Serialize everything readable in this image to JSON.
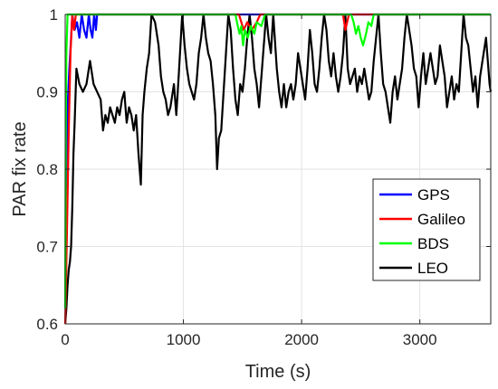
{
  "chart_data": {
    "type": "line",
    "xlabel": "Time (s)",
    "ylabel": "PAR fix rate",
    "xlim": [
      0,
      3600
    ],
    "ylim": [
      0.6,
      1.0
    ],
    "xticks": [
      0,
      1000,
      2000,
      3000
    ],
    "yticks": [
      0.6,
      0.7,
      0.8,
      0.9,
      1.0
    ],
    "xtick_labels": [
      "0",
      "1000",
      "2000",
      "3000"
    ],
    "ytick_labels": [
      "0.6",
      "0.7",
      "0.8",
      "0.9",
      "1"
    ],
    "grid": true,
    "legend_position": "right",
    "series": [
      {
        "name": "GPS",
        "color": "#0000ff",
        "points": [
          [
            0,
            0.62
          ],
          [
            10,
            0.8
          ],
          [
            20,
            0.88
          ],
          [
            35,
            0.93
          ],
          [
            50,
            0.97
          ],
          [
            60,
            1.0
          ],
          [
            80,
            0.98
          ],
          [
            100,
            0.99
          ],
          [
            120,
            0.97
          ],
          [
            140,
            1.0
          ],
          [
            160,
            0.98
          ],
          [
            180,
            0.97
          ],
          [
            200,
            1.0
          ],
          [
            215,
            0.98
          ],
          [
            230,
            0.97
          ],
          [
            245,
            1.0
          ],
          [
            260,
            0.98
          ],
          [
            270,
            1.0
          ],
          [
            3600,
            1.0
          ]
        ]
      },
      {
        "name": "Galileo",
        "color": "#ff0000",
        "points": [
          [
            0,
            0.6
          ],
          [
            15,
            0.72
          ],
          [
            30,
            0.85
          ],
          [
            45,
            0.95
          ],
          [
            60,
            1.0
          ],
          [
            75,
            0.98
          ],
          [
            90,
            1.0
          ],
          [
            1470,
            1.0
          ],
          [
            1490,
            0.99
          ],
          [
            1510,
            0.98
          ],
          [
            1540,
            0.99
          ],
          [
            1580,
            0.98
          ],
          [
            1620,
            0.99
          ],
          [
            1650,
            1.0
          ],
          [
            2350,
            1.0
          ],
          [
            2370,
            0.98
          ],
          [
            2400,
            1.0
          ],
          [
            3600,
            1.0
          ]
        ]
      },
      {
        "name": "BDS",
        "color": "#00ff00",
        "points": [
          [
            0,
            0.62
          ],
          [
            5,
            0.85
          ],
          [
            10,
            0.95
          ],
          [
            20,
            1.0
          ],
          [
            1440,
            1.0
          ],
          [
            1460,
            0.985
          ],
          [
            1475,
            0.975
          ],
          [
            1490,
            0.985
          ],
          [
            1505,
            0.96
          ],
          [
            1520,
            0.98
          ],
          [
            1545,
            0.97
          ],
          [
            1570,
            0.985
          ],
          [
            1600,
            0.975
          ],
          [
            1620,
            0.99
          ],
          [
            1660,
            0.985
          ],
          [
            1690,
            1.0
          ],
          [
            2420,
            1.0
          ],
          [
            2440,
            0.99
          ],
          [
            2460,
            0.975
          ],
          [
            2480,
            0.985
          ],
          [
            2500,
            0.97
          ],
          [
            2520,
            0.96
          ],
          [
            2545,
            0.975
          ],
          [
            2565,
            0.99
          ],
          [
            2590,
            0.985
          ],
          [
            2610,
            1.0
          ],
          [
            3600,
            1.0
          ]
        ]
      },
      {
        "name": "LEO",
        "color": "#000000",
        "points": [
          [
            0,
            0.6
          ],
          [
            10,
            0.62
          ],
          [
            20,
            0.65
          ],
          [
            30,
            0.67
          ],
          [
            40,
            0.68
          ],
          [
            50,
            0.7
          ],
          [
            60,
            0.75
          ],
          [
            70,
            0.82
          ],
          [
            80,
            0.86
          ],
          [
            95,
            0.93
          ],
          [
            120,
            0.91
          ],
          [
            150,
            0.9
          ],
          [
            180,
            0.91
          ],
          [
            210,
            0.94
          ],
          [
            240,
            0.91
          ],
          [
            270,
            0.9
          ],
          [
            300,
            0.89
          ],
          [
            320,
            0.85
          ],
          [
            340,
            0.87
          ],
          [
            360,
            0.86
          ],
          [
            380,
            0.88
          ],
          [
            400,
            0.87
          ],
          [
            420,
            0.86
          ],
          [
            440,
            0.88
          ],
          [
            460,
            0.87
          ],
          [
            480,
            0.89
          ],
          [
            500,
            0.9
          ],
          [
            520,
            0.86
          ],
          [
            540,
            0.88
          ],
          [
            560,
            0.87
          ],
          [
            580,
            0.85
          ],
          [
            600,
            0.87
          ],
          [
            620,
            0.82
          ],
          [
            640,
            0.78
          ],
          [
            655,
            0.87
          ],
          [
            670,
            0.9
          ],
          [
            690,
            0.93
          ],
          [
            710,
            0.95
          ],
          [
            730,
            1.0
          ],
          [
            760,
            0.99
          ],
          [
            790,
            0.96
          ],
          [
            810,
            0.92
          ],
          [
            830,
            0.9
          ],
          [
            850,
            0.89
          ],
          [
            870,
            0.87
          ],
          [
            890,
            0.88
          ],
          [
            900,
            0.89
          ],
          [
            920,
            0.91
          ],
          [
            940,
            0.87
          ],
          [
            960,
            0.92
          ],
          [
            990,
            1.0
          ],
          [
            1010,
            0.96
          ],
          [
            1030,
            0.93
          ],
          [
            1050,
            0.91
          ],
          [
            1070,
            0.9
          ],
          [
            1090,
            0.89
          ],
          [
            1110,
            0.91
          ],
          [
            1130,
            0.95
          ],
          [
            1150,
            0.97
          ],
          [
            1170,
            1.0
          ],
          [
            1190,
            0.97
          ],
          [
            1210,
            0.95
          ],
          [
            1230,
            0.94
          ],
          [
            1250,
            0.91
          ],
          [
            1270,
            0.87
          ],
          [
            1285,
            0.8
          ],
          [
            1300,
            0.84
          ],
          [
            1320,
            0.85
          ],
          [
            1340,
            0.9
          ],
          [
            1360,
            0.95
          ],
          [
            1380,
            1.0
          ],
          [
            1400,
            0.98
          ],
          [
            1420,
            0.93
          ],
          [
            1440,
            0.89
          ],
          [
            1460,
            0.87
          ],
          [
            1480,
            0.91
          ],
          [
            1500,
            0.9
          ],
          [
            1520,
            0.93
          ],
          [
            1540,
            0.97
          ],
          [
            1560,
            1.0
          ],
          [
            1580,
            0.97
          ],
          [
            1600,
            0.93
          ],
          [
            1620,
            0.91
          ],
          [
            1640,
            0.88
          ],
          [
            1660,
            0.92
          ],
          [
            1680,
            0.96
          ],
          [
            1700,
            1.0
          ],
          [
            1720,
            0.97
          ],
          [
            1740,
            0.95
          ],
          [
            1760,
            1.0
          ],
          [
            1790,
            0.93
          ],
          [
            1810,
            0.9
          ],
          [
            1830,
            0.88
          ],
          [
            1850,
            0.91
          ],
          [
            1870,
            0.88
          ],
          [
            1890,
            0.9
          ],
          [
            1910,
            0.91
          ],
          [
            1930,
            0.89
          ],
          [
            1950,
            0.91
          ],
          [
            1970,
            0.95
          ],
          [
            1990,
            0.93
          ],
          [
            2010,
            0.91
          ],
          [
            2030,
            0.89
          ],
          [
            2050,
            0.93
          ],
          [
            2070,
            0.98
          ],
          [
            2090,
            0.95
          ],
          [
            2110,
            0.91
          ],
          [
            2130,
            0.9
          ],
          [
            2150,
            0.93
          ],
          [
            2170,
            0.97
          ],
          [
            2190,
            1.0
          ],
          [
            2210,
            0.98
          ],
          [
            2230,
            0.94
          ],
          [
            2250,
            0.92
          ],
          [
            2270,
            0.95
          ],
          [
            2290,
            0.92
          ],
          [
            2310,
            0.9
          ],
          [
            2330,
            0.92
          ],
          [
            2350,
            0.95
          ],
          [
            2370,
            1.0
          ],
          [
            2390,
            0.93
          ],
          [
            2410,
            0.91
          ],
          [
            2430,
            0.92
          ],
          [
            2450,
            0.93
          ],
          [
            2470,
            0.9
          ],
          [
            2490,
            0.92
          ],
          [
            2510,
            0.91
          ],
          [
            2530,
            0.93
          ],
          [
            2550,
            0.91
          ],
          [
            2570,
            0.89
          ],
          [
            2590,
            0.9
          ],
          [
            2610,
            0.94
          ],
          [
            2630,
            0.97
          ],
          [
            2650,
            1.0
          ],
          [
            2670,
            0.95
          ],
          [
            2690,
            0.91
          ],
          [
            2710,
            0.9
          ],
          [
            2730,
            0.88
          ],
          [
            2750,
            0.86
          ],
          [
            2770,
            0.9
          ],
          [
            2790,
            0.92
          ],
          [
            2810,
            0.89
          ],
          [
            2830,
            0.91
          ],
          [
            2850,
            0.93
          ],
          [
            2870,
            0.97
          ],
          [
            2890,
            1.0
          ],
          [
            2910,
            0.98
          ],
          [
            2930,
            0.96
          ],
          [
            2950,
            0.93
          ],
          [
            2970,
            0.92
          ],
          [
            2990,
            0.88
          ],
          [
            3010,
            0.92
          ],
          [
            3030,
            0.95
          ],
          [
            3050,
            0.91
          ],
          [
            3070,
            0.93
          ],
          [
            3090,
            0.95
          ],
          [
            3110,
            0.93
          ],
          [
            3130,
            0.91
          ],
          [
            3150,
            0.92
          ],
          [
            3170,
            0.96
          ],
          [
            3190,
            0.94
          ],
          [
            3210,
            0.92
          ],
          [
            3230,
            0.88
          ],
          [
            3250,
            0.9
          ],
          [
            3270,
            0.92
          ],
          [
            3290,
            0.89
          ],
          [
            3310,
            0.91
          ],
          [
            3330,
            0.9
          ],
          [
            3350,
            0.95
          ],
          [
            3370,
            1.0
          ],
          [
            3390,
            0.97
          ],
          [
            3410,
            0.96
          ],
          [
            3430,
            0.93
          ],
          [
            3450,
            0.9
          ],
          [
            3470,
            0.92
          ],
          [
            3490,
            0.88
          ],
          [
            3510,
            0.92
          ],
          [
            3530,
            0.94
          ],
          [
            3550,
            0.96
          ],
          [
            3560,
            0.97
          ],
          [
            3575,
            0.94
          ],
          [
            3590,
            0.91
          ],
          [
            3600,
            0.9
          ]
        ]
      }
    ]
  }
}
